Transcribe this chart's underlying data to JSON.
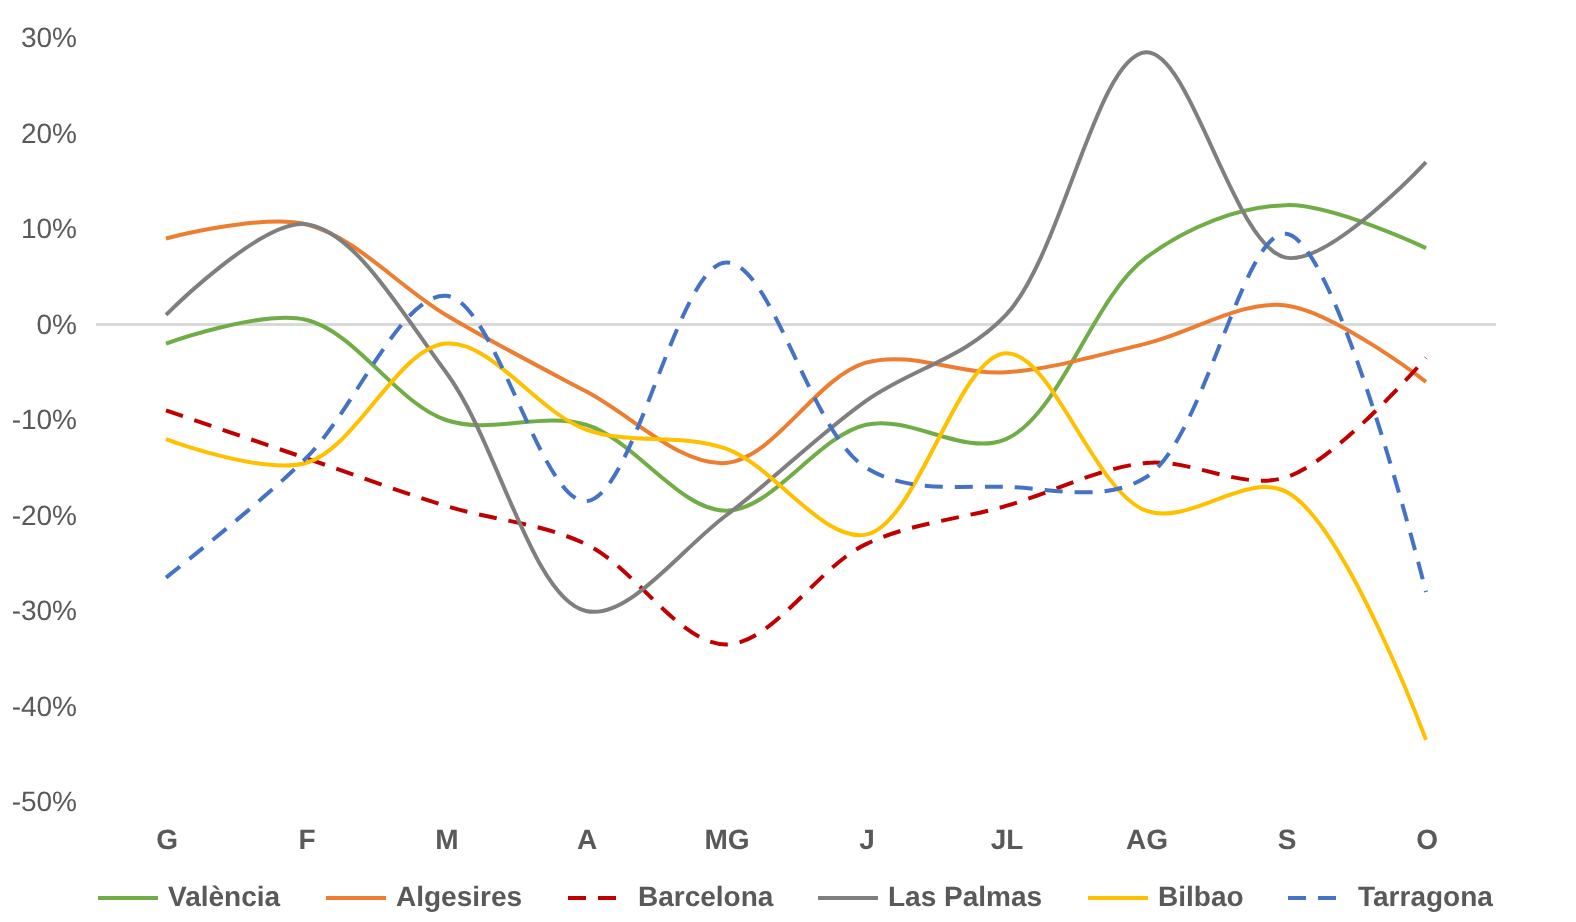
{
  "chart_data": {
    "type": "line",
    "categories": [
      "G",
      "F",
      "M",
      "A",
      "MG",
      "J",
      "JL",
      "AG",
      "S",
      "O"
    ],
    "series": [
      {
        "name": "València",
        "color": "#70ad47",
        "line_style": "solid",
        "values": [
          -2,
          0.5,
          -10,
          -10.5,
          -19.5,
          -10.5,
          -12,
          7,
          12.5,
          8
        ]
      },
      {
        "name": "Algesires",
        "color": "#ed7d31",
        "line_style": "solid",
        "values": [
          9,
          10.5,
          1,
          -7,
          -14.5,
          -4,
          -5,
          -2,
          2,
          -6
        ]
      },
      {
        "name": "Barcelona",
        "color": "#c00000",
        "line_style": "dashed",
        "values": [
          -9,
          -14,
          -19,
          -23,
          -33.5,
          -23,
          -19,
          -14.5,
          -16,
          -3.5
        ]
      },
      {
        "name": "Las Palmas",
        "color": "#7f7f7f",
        "line_style": "solid",
        "values": [
          1,
          10.5,
          -5,
          -30,
          -20,
          -8,
          1,
          28.5,
          7,
          17
        ]
      },
      {
        "name": "Bilbao",
        "color": "#ffc000",
        "line_style": "solid",
        "values": [
          -12,
          -14.5,
          -2,
          -11,
          -13,
          -22,
          -3,
          -19.5,
          -17.5,
          -43.5
        ]
      },
      {
        "name": "Tarragona",
        "color": "#4472c4",
        "line_style": "dashed",
        "values": [
          -26.5,
          -14,
          3,
          -18.5,
          6.5,
          -15,
          -17,
          -16,
          9.5,
          -28
        ]
      }
    ],
    "ylim": [
      -50,
      30
    ],
    "yticks": [
      {
        "value": -50,
        "label": "-50%"
      },
      {
        "value": -40,
        "label": "-40%"
      },
      {
        "value": -30,
        "label": "-30%"
      },
      {
        "value": -20,
        "label": "-20%"
      },
      {
        "value": -10,
        "label": "-10%"
      },
      {
        "value": 0,
        "label": "0%"
      },
      {
        "value": 10,
        "label": "10%"
      },
      {
        "value": 20,
        "label": "20%"
      },
      {
        "value": 30,
        "label": "30%"
      }
    ],
    "ref_lines": [
      {
        "axis": "y",
        "value": 0,
        "color": "#d9d9d9"
      }
    ],
    "grid": false,
    "legend": "bottom",
    "marker": "none"
  }
}
